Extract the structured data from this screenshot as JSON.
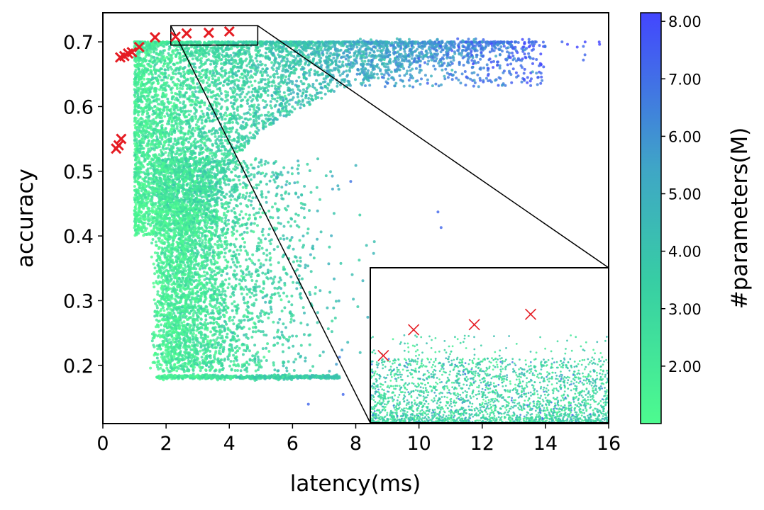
{
  "chart_data": {
    "type": "scatter",
    "title": "",
    "xlabel": "latency(ms)",
    "ylabel": "accuracy",
    "xlim": [
      0,
      16
    ],
    "ylim": [
      0.11,
      0.745
    ],
    "grid": false,
    "x_ticks": [
      {
        "value": 0,
        "label": "0"
      },
      {
        "value": 2,
        "label": "2"
      },
      {
        "value": 4,
        "label": "4"
      },
      {
        "value": 6,
        "label": "6"
      },
      {
        "value": 8,
        "label": "8"
      },
      {
        "value": 10,
        "label": "10"
      },
      {
        "value": 12,
        "label": "12"
      },
      {
        "value": 14,
        "label": "14"
      },
      {
        "value": 16,
        "label": "16"
      }
    ],
    "y_ticks": [
      {
        "value": 0.2,
        "label": "0.2"
      },
      {
        "value": 0.3,
        "label": "0.3"
      },
      {
        "value": 0.4,
        "label": "0.4"
      },
      {
        "value": 0.5,
        "label": "0.5"
      },
      {
        "value": 0.6,
        "label": "0.6"
      },
      {
        "value": 0.7,
        "label": "0.7"
      }
    ],
    "colorbar": {
      "label": "#parameters(M)",
      "range": [
        1.0,
        8.15
      ],
      "ticks": [
        {
          "value": 2,
          "label": "2.00"
        },
        {
          "value": 3,
          "label": "3.00"
        },
        {
          "value": 4,
          "label": "4.00"
        },
        {
          "value": 5,
          "label": "5.00"
        },
        {
          "value": 6,
          "label": "6.00"
        },
        {
          "value": 7,
          "label": "7.00"
        },
        {
          "value": 8,
          "label": "8.00"
        }
      ],
      "color_low": "#4dfb8f",
      "color_high": "#4346ff"
    },
    "pareto_color": "#e51c23",
    "pareto_points": [
      {
        "x": 0.42,
        "y": 0.535
      },
      {
        "x": 0.5,
        "y": 0.54
      },
      {
        "x": 0.58,
        "y": 0.55
      },
      {
        "x": 0.55,
        "y": 0.676
      },
      {
        "x": 0.68,
        "y": 0.678
      },
      {
        "x": 0.8,
        "y": 0.682
      },
      {
        "x": 0.92,
        "y": 0.684
      },
      {
        "x": 1.15,
        "y": 0.692
      },
      {
        "x": 1.65,
        "y": 0.707
      },
      {
        "x": 2.3,
        "y": 0.708
      },
      {
        "x": 2.65,
        "y": 0.713
      },
      {
        "x": 3.35,
        "y": 0.714
      },
      {
        "x": 4.0,
        "y": 0.716
      }
    ],
    "zoom_region": {
      "xlim": [
        2.15,
        4.9
      ],
      "ylim": [
        0.695,
        0.725
      ]
    },
    "inset_pareto_points": [
      {
        "x": 2.3,
        "y": 0.708
      },
      {
        "x": 2.65,
        "y": 0.713
      },
      {
        "x": 3.35,
        "y": 0.714
      },
      {
        "x": 4.0,
        "y": 0.716
      }
    ],
    "point_cloud": {
      "approx_count": 30000,
      "x_range": [
        0.4,
        15.3
      ],
      "y_range": [
        0.14,
        0.71
      ],
      "dense_region": {
        "x": [
          1,
          6
        ],
        "y": [
          0.45,
          0.7
        ]
      },
      "floor_band": {
        "y": 0.182,
        "x": [
          1.7,
          7.5
        ]
      },
      "high_param_region": {
        "x": [
          8,
          14
        ],
        "y": [
          0.65,
          0.7
        ]
      }
    }
  }
}
